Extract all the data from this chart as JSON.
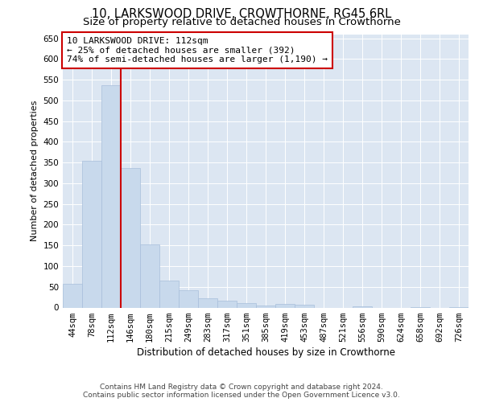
{
  "title": "10, LARKSWOOD DRIVE, CROWTHORNE, RG45 6RL",
  "subtitle": "Size of property relative to detached houses in Crowthorne",
  "xlabel": "Distribution of detached houses by size in Crowthorne",
  "ylabel": "Number of detached properties",
  "categories": [
    "44sqm",
    "78sqm",
    "112sqm",
    "146sqm",
    "180sqm",
    "215sqm",
    "249sqm",
    "283sqm",
    "317sqm",
    "351sqm",
    "385sqm",
    "419sqm",
    "453sqm",
    "487sqm",
    "521sqm",
    "556sqm",
    "590sqm",
    "624sqm",
    "658sqm",
    "692sqm",
    "726sqm"
  ],
  "values": [
    57,
    354,
    537,
    337,
    153,
    65,
    41,
    23,
    17,
    10,
    5,
    8,
    7,
    0,
    0,
    3,
    0,
    0,
    1,
    0,
    1
  ],
  "bar_color": "#c8d9ec",
  "bar_edge_color": "#a8bedb",
  "vline_index": 2,
  "vline_color": "#cc0000",
  "annotation_text": "10 LARKSWOOD DRIVE: 112sqm\n← 25% of detached houses are smaller (392)\n74% of semi-detached houses are larger (1,190) →",
  "annotation_box_facecolor": "#ffffff",
  "annotation_box_edgecolor": "#cc0000",
  "ylim": [
    0,
    660
  ],
  "yticks": [
    0,
    50,
    100,
    150,
    200,
    250,
    300,
    350,
    400,
    450,
    500,
    550,
    600,
    650
  ],
  "plot_bg_color": "#dce6f2",
  "footer_text": "Contains HM Land Registry data © Crown copyright and database right 2024.\nContains public sector information licensed under the Open Government Licence v3.0.",
  "title_fontsize": 10.5,
  "subtitle_fontsize": 9.5,
  "xlabel_fontsize": 8.5,
  "ylabel_fontsize": 8,
  "tick_fontsize": 7.5,
  "annotation_fontsize": 8,
  "footer_fontsize": 6.5
}
